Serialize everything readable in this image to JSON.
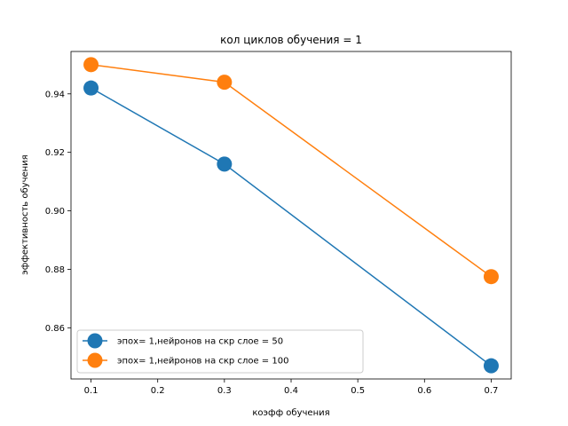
{
  "chart_data": {
    "type": "line",
    "title": "кол циклов обучения = 1",
    "xlabel": "коэфф обучения",
    "ylabel": "эффективность обучения",
    "xlim": [
      0.07,
      0.73
    ],
    "ylim": [
      0.8425,
      0.9545
    ],
    "xticks": [
      0.1,
      0.2,
      0.3,
      0.4,
      0.5,
      0.6,
      0.7
    ],
    "xtick_labels": [
      "0.1",
      "0.2",
      "0.3",
      "0.4",
      "0.5",
      "0.6",
      "0.7"
    ],
    "yticks": [
      0.86,
      0.88,
      0.9,
      0.92,
      0.94
    ],
    "ytick_labels": [
      "0.86",
      "0.88",
      "0.90",
      "0.92",
      "0.94"
    ],
    "grid": false,
    "legend_position": "lower-left",
    "series": [
      {
        "name": "эпох= 1,нейронов на скр слое = 50",
        "color": "#1f77b4",
        "x": [
          0.1,
          0.3,
          0.7
        ],
        "y": [
          0.942,
          0.916,
          0.847
        ]
      },
      {
        "name": "эпох= 1,нейронов на скр слое = 100",
        "color": "#ff7f0e",
        "x": [
          0.1,
          0.3,
          0.7
        ],
        "y": [
          0.95,
          0.944,
          0.8775
        ]
      }
    ]
  }
}
